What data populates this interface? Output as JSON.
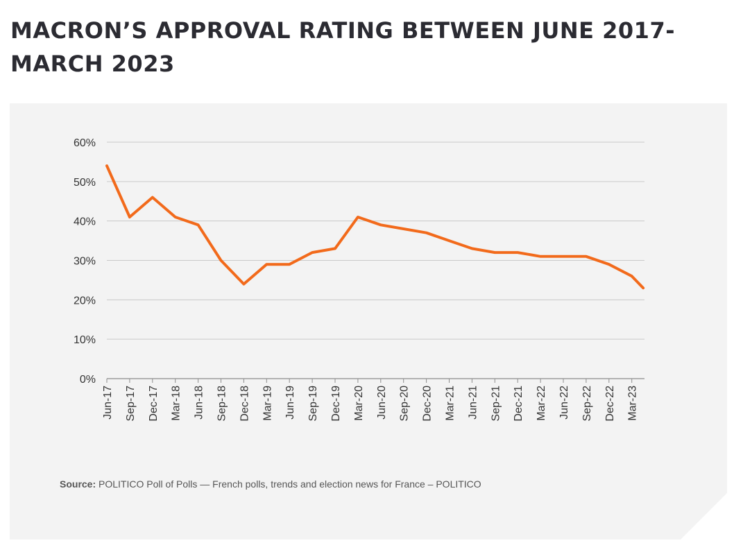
{
  "chart_data": {
    "type": "line",
    "title": "MACRON’S APPROVAL RATING BETWEEN JUNE 2017-MARCH 2023",
    "xlabel": "",
    "ylabel": "",
    "ylim": [
      0,
      60
    ],
    "yticks": [
      "0%",
      "10%",
      "20%",
      "30%",
      "40%",
      "50%",
      "60%"
    ],
    "ytick_values": [
      0,
      10,
      20,
      30,
      40,
      50,
      60
    ],
    "categories": [
      "Jun-17",
      "Sep-17",
      "Dec-17",
      "Mar-18",
      "Jun-18",
      "Sep-18",
      "Dec-18",
      "Mar-19",
      "Jun-19",
      "Sep-19",
      "Dec-19",
      "Mar-20",
      "Jun-20",
      "Sep-20",
      "Dec-20",
      "Mar-21",
      "Jun-21",
      "Sep-21",
      "Dec-21",
      "Mar-22",
      "Jun-22",
      "Sep-22",
      "Dec-22",
      "Mar-23"
    ],
    "x": [
      0,
      1,
      2,
      3,
      4,
      5,
      6,
      7,
      8,
      9,
      10,
      11,
      12,
      13,
      14,
      15,
      16,
      17,
      18,
      19,
      20,
      21,
      22,
      23,
      23.5
    ],
    "values": [
      54,
      41,
      46,
      41,
      39,
      30,
      24,
      29,
      29,
      32,
      33,
      41,
      39,
      38,
      37,
      35,
      33,
      32,
      32,
      31,
      31,
      31,
      29,
      26,
      23
    ],
    "grid": true,
    "legend": "none",
    "color": "#f26a1b"
  },
  "source": {
    "label": "Source:",
    "text": "POLITICO Poll of Polls — French polls, trends and election news for France – POLITICO"
  }
}
